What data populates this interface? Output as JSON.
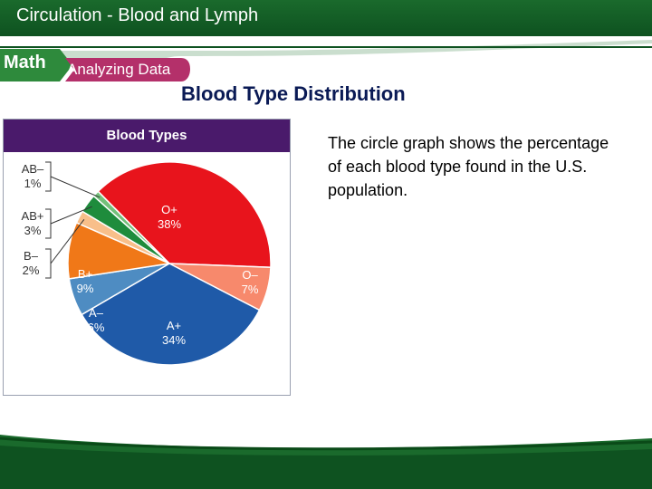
{
  "header": {
    "title_strong": "Circulation",
    "title_rest": " - Blood and Lymph"
  },
  "badge": {
    "math": "Math",
    "analyzing": "Analyzing Data"
  },
  "slide_title": "Blood Type Distribution",
  "description": "The circle graph shows the percentage of each blood type found in the U.S. population.",
  "colors": {
    "header_green": "#1a6a2c",
    "title_blue": "#0a1a55",
    "chart_header_purple": "#4a1a6b"
  },
  "chart_data": {
    "type": "pie",
    "title": "Blood Types",
    "slices": [
      {
        "label": "O+",
        "pct": "38%",
        "value": 38,
        "color": "#e8141c"
      },
      {
        "label": "O–",
        "pct": "7%",
        "value": 7,
        "color": "#f7896c"
      },
      {
        "label": "A+",
        "pct": "34%",
        "value": 34,
        "color": "#1f5aa8"
      },
      {
        "label": "A–",
        "pct": "6%",
        "value": 6,
        "color": "#4e8cc2"
      },
      {
        "label": "B+",
        "pct": "9%",
        "value": 9,
        "color": "#f07818"
      },
      {
        "label": "B–",
        "pct": "2%",
        "value": 2,
        "color": "#f8bf8a"
      },
      {
        "label": "AB+",
        "pct": "3%",
        "value": 3,
        "color": "#1e8c3c"
      },
      {
        "label": "AB–",
        "pct": "1%",
        "value": 1,
        "color": "#74c07a"
      }
    ]
  }
}
